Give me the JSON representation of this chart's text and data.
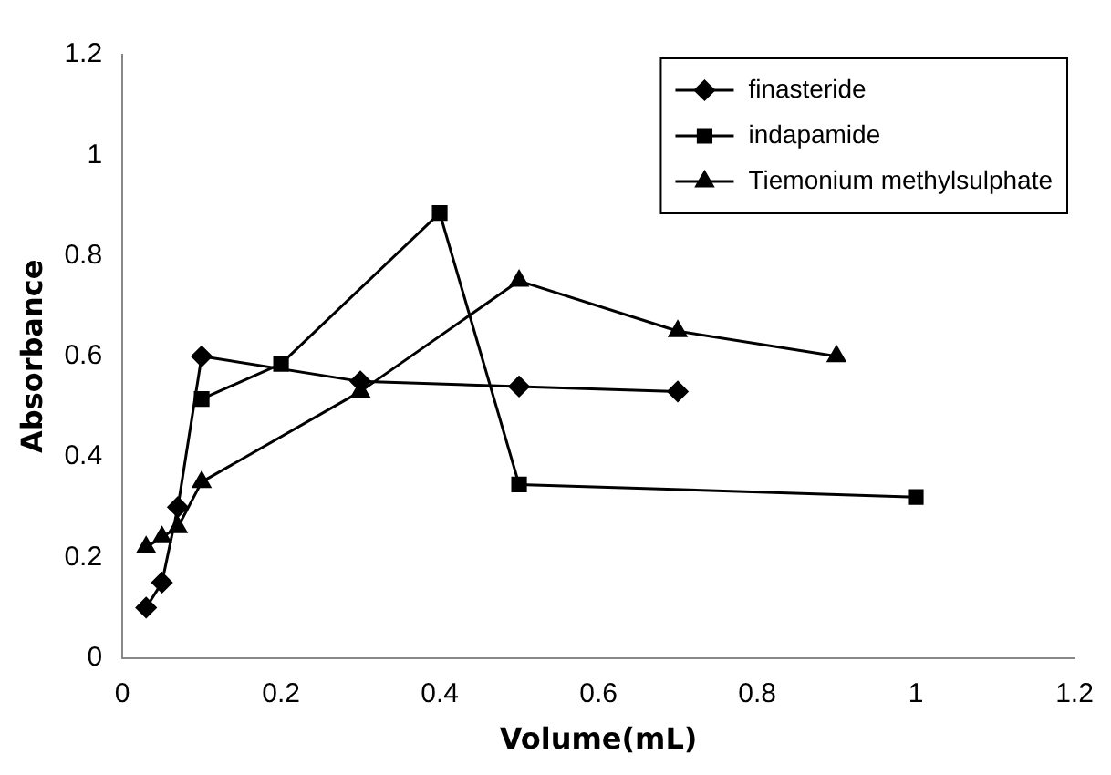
{
  "chart_data": {
    "type": "line",
    "xlabel": "Volume(mL)",
    "ylabel": "Absorbance",
    "xlim": [
      0,
      1.2
    ],
    "xticks": [
      0,
      0.2,
      0.4,
      0.6,
      0.8,
      1,
      1.2
    ],
    "ylim": [
      0,
      1.2
    ],
    "yticks": [
      0,
      0.2,
      0.4,
      0.6,
      0.8,
      1,
      1.2
    ],
    "grid": false,
    "legend": "top right",
    "line_style": "solid",
    "series": [
      {
        "name": "finasteride",
        "color": "#000000",
        "marker": "diamond",
        "x": [
          0.03,
          0.05,
          0.07,
          0.1,
          0.3,
          0.5,
          0.7
        ],
        "values": [
          0.1,
          0.15,
          0.3,
          0.6,
          0.55,
          0.54,
          0.53
        ]
      },
      {
        "name": "indapamide",
        "color": "#000000",
        "marker": "square",
        "x": [
          0.1,
          0.2,
          0.4,
          0.5,
          1.0
        ],
        "values": [
          0.515,
          0.585,
          0.885,
          0.345,
          0.32
        ]
      },
      {
        "name": "Tiemonium methylsulphate",
        "color": "#000000",
        "marker": "triangle",
        "x": [
          0.03,
          0.05,
          0.07,
          0.1,
          0.3,
          0.5,
          0.7,
          0.9
        ],
        "values": [
          0.22,
          0.24,
          0.26,
          0.35,
          0.53,
          0.75,
          0.65,
          0.6
        ]
      }
    ]
  }
}
